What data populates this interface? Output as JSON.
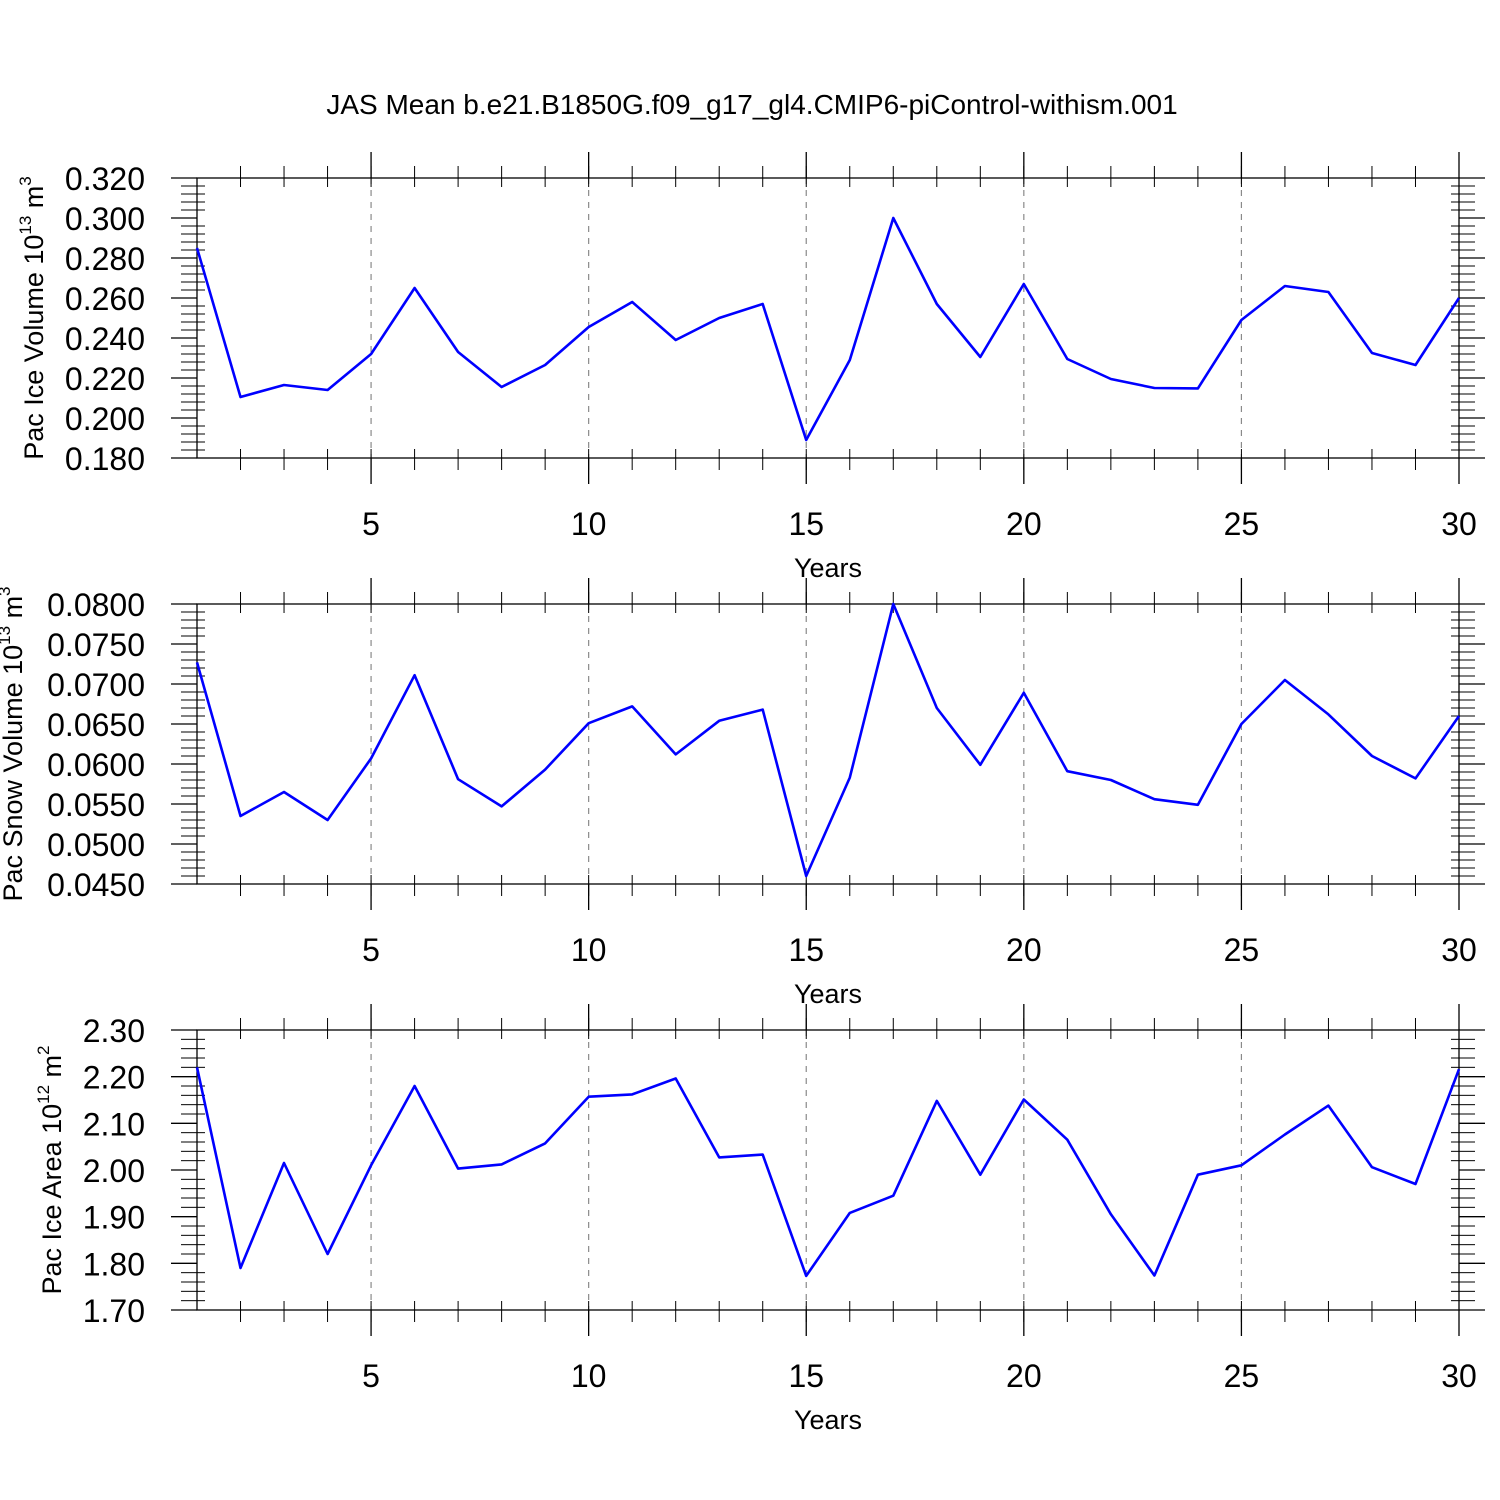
{
  "figure_title": "JAS Mean b.e21.B1850G.f09_g17_gl4.CMIP6-piControl-withism.001",
  "chart_data": [
    {
      "type": "line",
      "title": "",
      "xlabel": "Years",
      "ylabel": {
        "base": "Pac Ice Volume 10",
        "exp": "13",
        "unit": " m",
        "unit_exp": "3"
      },
      "x": [
        1,
        2,
        3,
        4,
        5,
        6,
        7,
        8,
        9,
        10,
        11,
        12,
        13,
        14,
        15,
        16,
        17,
        18,
        19,
        20,
        21,
        22,
        23,
        24,
        25,
        26,
        27,
        28,
        29,
        30
      ],
      "series": [
        {
          "name": "Pac Ice Volume",
          "color": "#0000ff",
          "values": [
            0.285,
            0.2105,
            0.2165,
            0.214,
            0.232,
            0.265,
            0.233,
            0.2155,
            0.2265,
            0.2455,
            0.258,
            0.239,
            0.25,
            0.257,
            0.189,
            0.229,
            0.3,
            0.257,
            0.2305,
            0.267,
            0.2295,
            0.2195,
            0.215,
            0.2148,
            0.249,
            0.266,
            0.263,
            0.2325,
            0.2265,
            0.26
          ]
        }
      ],
      "xlim": [
        1,
        30
      ],
      "ylim": [
        0.18,
        0.32
      ],
      "xticks": [
        5,
        10,
        15,
        20,
        25,
        30
      ],
      "xtick_labels": [
        "5",
        "10",
        "15",
        "20",
        "25",
        "30"
      ],
      "yticks": [
        0.18,
        0.2,
        0.22,
        0.24,
        0.26,
        0.28,
        0.3,
        0.32
      ],
      "ytick_labels": [
        "0.180",
        "0.200",
        "0.220",
        "0.240",
        "0.260",
        "0.280",
        "0.300",
        "0.320"
      ],
      "grid": "vertical-dashed"
    },
    {
      "type": "line",
      "title": "",
      "xlabel": "Years",
      "ylabel": {
        "base": "Pac Snow Volume 10",
        "exp": "13",
        "unit": " m",
        "unit_exp": "3"
      },
      "x": [
        1,
        2,
        3,
        4,
        5,
        6,
        7,
        8,
        9,
        10,
        11,
        12,
        13,
        14,
        15,
        16,
        17,
        18,
        19,
        20,
        21,
        22,
        23,
        24,
        25,
        26,
        27,
        28,
        29,
        30
      ],
      "series": [
        {
          "name": "Pac Snow Volume",
          "color": "#0000ff",
          "values": [
            0.0727,
            0.0535,
            0.0565,
            0.053,
            0.0607,
            0.0711,
            0.0581,
            0.0547,
            0.0593,
            0.0651,
            0.0672,
            0.0612,
            0.0654,
            0.0668,
            0.046,
            0.0583,
            0.08,
            0.067,
            0.0599,
            0.0689,
            0.0591,
            0.058,
            0.0556,
            0.0549,
            0.065,
            0.0705,
            0.0662,
            0.061,
            0.0582,
            0.066
          ]
        }
      ],
      "xlim": [
        1,
        30
      ],
      "ylim": [
        0.045,
        0.08
      ],
      "xticks": [
        5,
        10,
        15,
        20,
        25,
        30
      ],
      "xtick_labels": [
        "5",
        "10",
        "15",
        "20",
        "25",
        "30"
      ],
      "yticks": [
        0.045,
        0.05,
        0.055,
        0.06,
        0.065,
        0.07,
        0.075,
        0.08
      ],
      "ytick_labels": [
        "0.0450",
        "0.0500",
        "0.0550",
        "0.0600",
        "0.0650",
        "0.0700",
        "0.0750",
        "0.0800"
      ],
      "grid": "vertical-dashed"
    },
    {
      "type": "line",
      "title": "",
      "xlabel": "Years",
      "ylabel": {
        "base": "Pac Ice Area 10",
        "exp": "12",
        "unit": " m",
        "unit_exp": "2"
      },
      "x": [
        1,
        2,
        3,
        4,
        5,
        6,
        7,
        8,
        9,
        10,
        11,
        12,
        13,
        14,
        15,
        16,
        17,
        18,
        19,
        20,
        21,
        22,
        23,
        24,
        25,
        26,
        27,
        28,
        29,
        30
      ],
      "series": [
        {
          "name": "Pac Ice Area",
          "color": "#0000ff",
          "values": [
            2.22,
            1.79,
            2.015,
            1.82,
            2.01,
            2.18,
            2.003,
            2.012,
            2.057,
            2.157,
            2.162,
            2.196,
            2.027,
            2.033,
            1.773,
            1.908,
            1.945,
            2.148,
            1.99,
            2.151,
            2.065,
            1.905,
            1.774,
            1.99,
            2.01,
            2.076,
            2.138,
            2.006,
            1.97,
            2.216
          ]
        }
      ],
      "xlim": [
        1,
        30
      ],
      "ylim": [
        1.7,
        2.3
      ],
      "xticks": [
        5,
        10,
        15,
        20,
        25,
        30
      ],
      "xtick_labels": [
        "5",
        "10",
        "15",
        "20",
        "25",
        "30"
      ],
      "yticks": [
        1.7,
        1.8,
        1.9,
        2.0,
        2.1,
        2.2,
        2.3
      ],
      "ytick_labels": [
        "1.70",
        "1.80",
        "1.90",
        "2.00",
        "2.10",
        "2.20",
        "2.30"
      ],
      "grid": "vertical-dashed"
    }
  ]
}
